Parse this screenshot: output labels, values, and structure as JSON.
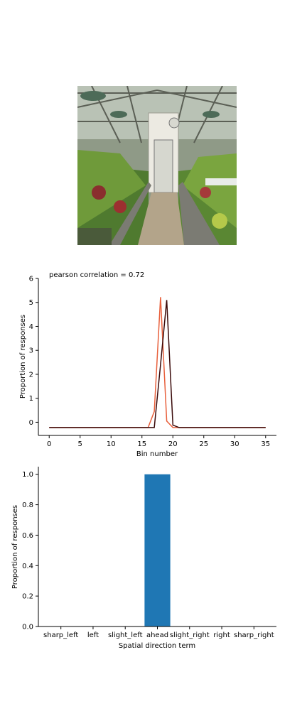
{
  "photo": {
    "subject": "greenhouse"
  },
  "chart_data": [
    {
      "type": "line",
      "annotation": "pearson correlation = 0.72",
      "xlabel": "Bin number",
      "ylabel": "Proportion of responses",
      "xlim": [
        -1.75,
        36.75
      ],
      "ylim": [
        -0.55,
        6.0
      ],
      "xticks": [
        0,
        5,
        10,
        15,
        20,
        25,
        30,
        35
      ],
      "yticks": [
        0,
        1,
        2,
        3,
        4,
        5,
        6
      ],
      "series": [
        {
          "color": "#e8603c",
          "x": [
            0,
            1,
            2,
            3,
            4,
            5,
            6,
            7,
            8,
            9,
            10,
            11,
            12,
            13,
            14,
            15,
            16,
            17,
            18,
            19,
            20,
            21,
            22,
            23,
            24,
            25,
            26,
            27,
            28,
            29,
            30,
            31,
            32,
            33,
            34,
            35
          ],
          "y": [
            -0.22,
            -0.22,
            -0.22,
            -0.22,
            -0.22,
            -0.22,
            -0.22,
            -0.22,
            -0.22,
            -0.22,
            -0.22,
            -0.22,
            -0.22,
            -0.22,
            -0.22,
            -0.22,
            -0.22,
            0.45,
            5.22,
            0.05,
            -0.22,
            -0.22,
            -0.22,
            -0.22,
            -0.22,
            -0.22,
            -0.22,
            -0.22,
            -0.22,
            -0.22,
            -0.22,
            -0.22,
            -0.22,
            -0.22,
            -0.22,
            -0.22
          ]
        },
        {
          "color": "#3a0a0a",
          "x": [
            0,
            1,
            2,
            3,
            4,
            5,
            6,
            7,
            8,
            9,
            10,
            11,
            12,
            13,
            14,
            15,
            16,
            17,
            18,
            19,
            20,
            21,
            22,
            23,
            24,
            25,
            26,
            27,
            28,
            29,
            30,
            31,
            32,
            33,
            34,
            35
          ],
          "y": [
            -0.22,
            -0.22,
            -0.22,
            -0.22,
            -0.22,
            -0.22,
            -0.22,
            -0.22,
            -0.22,
            -0.22,
            -0.22,
            -0.22,
            -0.22,
            -0.22,
            -0.22,
            -0.22,
            -0.22,
            -0.22,
            2.4,
            5.1,
            -0.12,
            -0.22,
            -0.22,
            -0.22,
            -0.22,
            -0.22,
            -0.22,
            -0.22,
            -0.22,
            -0.22,
            -0.22,
            -0.22,
            -0.22,
            -0.22,
            -0.22,
            -0.22
          ]
        }
      ]
    },
    {
      "type": "bar",
      "xlabel": "Spatial direction term",
      "ylabel": "Proportion of responses",
      "categories": [
        "sharp_left",
        "left",
        "slight_left",
        "ahead",
        "slight_right",
        "right",
        "sharp_right"
      ],
      "values": [
        0,
        0,
        0,
        1.0,
        0,
        0,
        0
      ],
      "ylim": [
        0,
        1.05
      ],
      "yticks": [
        "0.0",
        "0.2",
        "0.4",
        "0.6",
        "0.8",
        "1.0"
      ],
      "bar_color": "#1f77b4"
    }
  ]
}
